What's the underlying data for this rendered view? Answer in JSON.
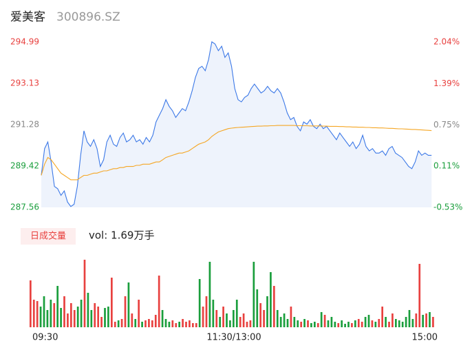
{
  "header": {
    "name": "爱美客",
    "code": "300896.SZ"
  },
  "chart_data": [
    {
      "type": "line",
      "xlim": [
        0,
        120
      ],
      "ylim": [
        287.56,
        294.99
      ],
      "yticks": [
        294.99,
        293.13,
        291.28,
        289.42,
        287.56
      ],
      "y2lim": [
        -0.53,
        2.04
      ],
      "y2ticks": [
        {
          "value": 2.04,
          "label": "2.04%"
        },
        {
          "value": 1.39,
          "label": "1.39%"
        },
        {
          "value": 0.75,
          "label": "0.75%"
        },
        {
          "value": 0.11,
          "label": "0.11%"
        },
        {
          "value": -0.53,
          "label": "-0.53%"
        }
      ],
      "tick_colors": [
        "#e8413f",
        "#e8413f",
        "#888888",
        "#1a9e3c",
        "#1a9e3c"
      ],
      "area_color": "#eef3fc",
      "series": [
        {
          "color": "#3b78e7",
          "values": [
            289.0,
            290.2,
            290.5,
            289.6,
            288.5,
            288.4,
            288.1,
            288.3,
            287.8,
            287.6,
            287.7,
            288.5,
            289.9,
            291.0,
            290.5,
            290.3,
            290.6,
            290.2,
            289.4,
            289.7,
            290.5,
            290.8,
            290.4,
            290.3,
            290.7,
            290.9,
            290.5,
            290.6,
            290.8,
            290.5,
            290.6,
            290.4,
            290.7,
            290.5,
            290.8,
            291.4,
            291.7,
            292.0,
            292.4,
            292.1,
            291.9,
            291.6,
            291.8,
            292.0,
            291.9,
            292.3,
            292.8,
            293.4,
            293.8,
            293.9,
            293.7,
            294.2,
            295.0,
            294.9,
            294.6,
            294.8,
            294.3,
            294.5,
            293.9,
            292.9,
            292.4,
            292.3,
            292.5,
            292.6,
            292.9,
            293.1,
            292.9,
            292.7,
            292.8,
            293.0,
            292.8,
            292.7,
            292.9,
            292.7,
            292.3,
            291.8,
            291.5,
            291.6,
            291.2,
            291.0,
            291.4,
            291.3,
            291.5,
            291.2,
            291.1,
            291.3,
            291.1,
            291.2,
            291.0,
            290.8,
            290.6,
            290.9,
            290.7,
            290.5,
            290.3,
            290.5,
            290.2,
            290.4,
            290.8,
            290.3,
            290.1,
            290.2,
            290.0,
            290.0,
            290.1,
            289.9,
            290.2,
            290.3,
            290.0,
            289.9,
            289.8,
            289.6,
            289.4,
            289.3,
            289.6,
            290.1,
            289.9,
            290.0,
            289.9,
            289.9
          ]
        },
        {
          "color": "#f5a623",
          "values": [
            289.0,
            289.5,
            289.8,
            289.7,
            289.5,
            289.3,
            289.1,
            289.0,
            288.9,
            288.8,
            288.8,
            288.8,
            288.9,
            289.0,
            289.0,
            289.05,
            289.1,
            289.1,
            289.15,
            289.2,
            289.2,
            289.25,
            289.3,
            289.3,
            289.35,
            289.35,
            289.4,
            289.4,
            289.4,
            289.45,
            289.45,
            289.5,
            289.5,
            289.5,
            289.55,
            289.6,
            289.6,
            289.7,
            289.8,
            289.85,
            289.9,
            289.95,
            290.0,
            290.0,
            290.05,
            290.1,
            290.2,
            290.3,
            290.4,
            290.45,
            290.5,
            290.6,
            290.75,
            290.85,
            290.95,
            291.0,
            291.05,
            291.1,
            291.12,
            291.14,
            291.15,
            291.16,
            291.17,
            291.18,
            291.19,
            291.2,
            291.21,
            291.21,
            291.22,
            291.22,
            291.23,
            291.23,
            291.24,
            291.24,
            291.24,
            291.24,
            291.24,
            291.24,
            291.23,
            291.23,
            291.23,
            291.23,
            291.22,
            291.22,
            291.22,
            291.22,
            291.21,
            291.21,
            291.2,
            291.2,
            291.2,
            291.19,
            291.19,
            291.18,
            291.18,
            291.17,
            291.17,
            291.16,
            291.16,
            291.15,
            291.15,
            291.14,
            291.14,
            291.13,
            291.13,
            291.12,
            291.11,
            291.11,
            291.1,
            291.09,
            291.09,
            291.08,
            291.07,
            291.06,
            291.06,
            291.05,
            291.04,
            291.03,
            291.02,
            291.01
          ]
        }
      ]
    },
    {
      "type": "bar",
      "tab": "日成交量",
      "label": "vol: 1.69万手",
      "xlim": [
        0,
        120
      ],
      "xticks": [
        {
          "value": 0,
          "label": "09:30"
        },
        {
          "value": 60,
          "label": "11:30/13:00"
        },
        {
          "value": 120,
          "label": "15:00"
        }
      ],
      "ylim": [
        0,
        100
      ],
      "up_color": "#e8413f",
      "down_color": "#1a9e3c",
      "values": [
        68,
        40,
        38,
        30,
        45,
        25,
        40,
        35,
        60,
        28,
        45,
        20,
        35,
        25,
        30,
        40,
        98,
        50,
        25,
        35,
        30,
        15,
        28,
        30,
        72,
        8,
        10,
        12,
        45,
        65,
        20,
        12,
        40,
        8,
        10,
        12,
        10,
        18,
        75,
        25,
        12,
        8,
        10,
        6,
        8,
        12,
        8,
        10,
        6,
        6,
        70,
        30,
        45,
        95,
        40,
        25,
        15,
        30,
        20,
        10,
        25,
        40,
        15,
        20,
        8,
        10,
        95,
        55,
        35,
        25,
        45,
        80,
        60,
        25,
        15,
        20,
        12,
        30,
        15,
        10,
        8,
        12,
        10,
        6,
        8,
        6,
        22,
        18,
        10,
        15,
        8,
        6,
        10,
        5,
        8,
        6,
        10,
        12,
        8,
        15,
        18,
        10,
        8,
        12,
        30,
        15,
        8,
        20,
        12,
        10,
        8,
        15,
        25,
        12,
        20,
        92,
        18,
        20,
        22,
        15
      ]
    }
  ]
}
